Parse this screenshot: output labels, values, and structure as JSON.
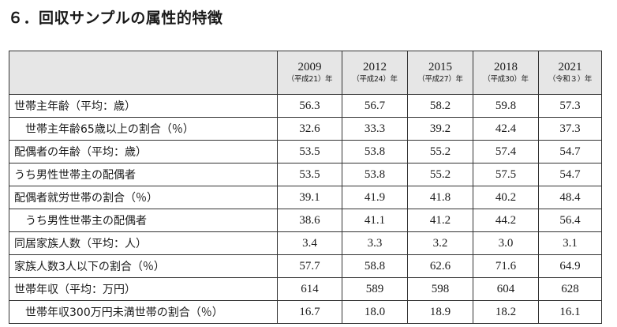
{
  "title": "６．回収サンプルの属性的特徴",
  "columns": [
    {
      "year": "2009",
      "era": "（平成21）年"
    },
    {
      "year": "2012",
      "era": "（平成24）年"
    },
    {
      "year": "2015",
      "era": "（平成27）年"
    },
    {
      "year": "2018",
      "era": "（平成30）年"
    },
    {
      "year": "2021",
      "era": "（令和３）年"
    }
  ],
  "rows": [
    {
      "label": "世帯主年齢（平均：歳）",
      "values": [
        "56.3",
        "56.7",
        "58.2",
        "59.8",
        "57.3"
      ]
    },
    {
      "label": "世帯主年齢65歳以上の割合（％）",
      "values": [
        "32.6",
        "33.3",
        "39.2",
        "42.4",
        "37.3"
      ]
    },
    {
      "label": "配偶者の年齢（平均：歳）",
      "values": [
        "53.5",
        "53.8",
        "55.2",
        "57.4",
        "54.7"
      ]
    },
    {
      "label": "うち男性世帯主の配偶者",
      "values": [
        "53.5",
        "53.8",
        "55.2",
        "57.5",
        "54.7"
      ]
    },
    {
      "label": "配偶者就労世帯の割合（％）",
      "values": [
        "39.1",
        "41.9",
        "41.8",
        "40.2",
        "48.4"
      ]
    },
    {
      "label": "うち男性世帯主の配偶者",
      "values": [
        "38.6",
        "41.1",
        "41.2",
        "44.2",
        "56.4"
      ]
    },
    {
      "label": "同居家族人数（平均：人）",
      "values": [
        "3.4",
        "3.3",
        "3.2",
        "3.0",
        "3.1"
      ]
    },
    {
      "label": "家族人数3人以下の割合（％）",
      "values": [
        "57.7",
        "58.8",
        "62.6",
        "71.6",
        "64.9"
      ]
    },
    {
      "label": "世帯年収（平均：万円）",
      "values": [
        "614",
        "589",
        "598",
        "604",
        "628"
      ]
    },
    {
      "label": "世帯年収300万円未満世帯の割合（％）",
      "values": [
        "16.7",
        "18.0",
        "18.9",
        "18.2",
        "16.1"
      ]
    }
  ]
}
